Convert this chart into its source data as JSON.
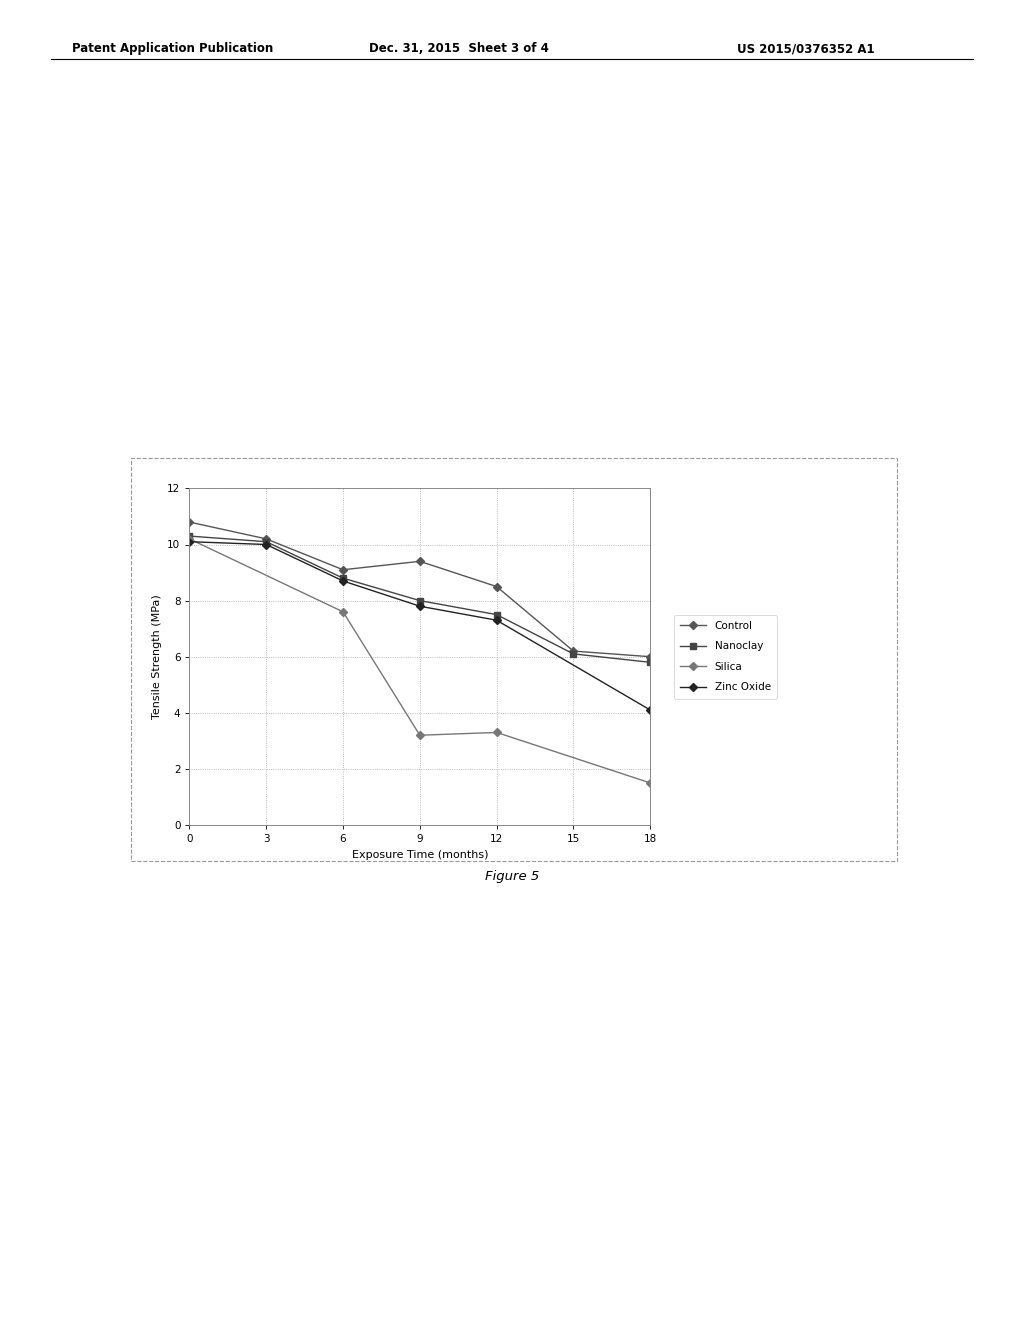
{
  "x": [
    0,
    3,
    6,
    9,
    12,
    15,
    18
  ],
  "series": {
    "Control": [
      10.8,
      10.2,
      9.1,
      9.4,
      8.5,
      6.2,
      6.0
    ],
    "Nanoclay": [
      10.3,
      10.1,
      8.8,
      8.0,
      7.5,
      6.1,
      5.8
    ],
    "Silica": [
      10.2,
      null,
      7.6,
      3.2,
      3.3,
      null,
      1.5
    ],
    "Zinc Oxide": [
      10.1,
      10.0,
      8.7,
      7.8,
      7.3,
      null,
      4.1
    ]
  },
  "xlabel": "Exposure Time (months)",
  "ylabel": "Tensile Strength (MPa)",
  "ylim": [
    0,
    12
  ],
  "xlim": [
    0,
    18
  ],
  "yticks": [
    0,
    2,
    4,
    6,
    8,
    10,
    12
  ],
  "xticks": [
    0,
    3,
    6,
    9,
    12,
    15,
    18
  ],
  "figure_caption": "Figure 5",
  "header_left": "Patent Application Publication",
  "header_center": "Dec. 31, 2015  Sheet 3 of 4",
  "header_right": "US 2015/0376352 A1",
  "bg_color": "#ffffff",
  "grid_color": "#aaaaaa",
  "plot_bg": "#ffffff"
}
